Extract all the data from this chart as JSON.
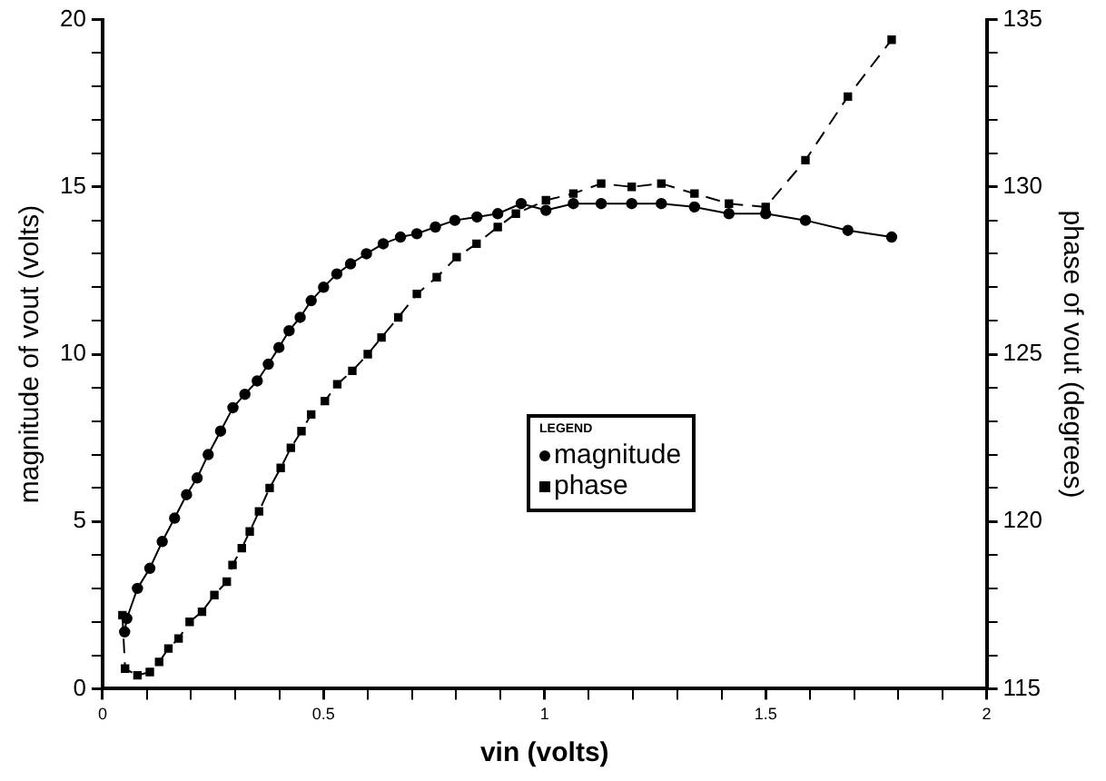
{
  "chart_data": {
    "type": "line",
    "xlabel": "vin (volts)",
    "ylabel": "magnitude of vout (volts)",
    "y2label": "phase of vout (degrees)",
    "legend_title": "LEGEND",
    "legend": "right",
    "grid": false,
    "xlim": [
      0,
      2
    ],
    "xticks": [
      0,
      {
        "value": 0.1,
        "label": null
      },
      {
        "value": 0.2,
        "label": null
      },
      {
        "value": 0.3,
        "label": null
      },
      {
        "value": 0.4,
        "label": null
      },
      0.5,
      {
        "value": 0.6,
        "label": null
      },
      {
        "value": 0.7,
        "label": null
      },
      {
        "value": 0.8,
        "label": null
      },
      {
        "value": 0.9,
        "label": null
      },
      1,
      {
        "value": 1.1,
        "label": null
      },
      {
        "value": 1.2,
        "label": null
      },
      {
        "value": 1.3,
        "label": null
      },
      {
        "value": 1.4,
        "label": null
      },
      1.5,
      {
        "value": 1.6,
        "label": null
      },
      {
        "value": 1.7,
        "label": null
      },
      {
        "value": 1.8,
        "label": null
      },
      {
        "value": 1.9,
        "label": null
      },
      2
    ],
    "ylim": [
      0,
      20
    ],
    "yticks": [
      0,
      {
        "value": 1,
        "label": null
      },
      {
        "value": 2,
        "label": null
      },
      {
        "value": 3,
        "label": null
      },
      {
        "value": 4,
        "label": null
      },
      5,
      {
        "value": 6,
        "label": null
      },
      {
        "value": 7,
        "label": null
      },
      {
        "value": 8,
        "label": null
      },
      {
        "value": 9,
        "label": null
      },
      10,
      {
        "value": 11,
        "label": null
      },
      {
        "value": 12,
        "label": null
      },
      {
        "value": 13,
        "label": null
      },
      {
        "value": 14,
        "label": null
      },
      15,
      {
        "value": 16,
        "label": null
      },
      {
        "value": 17,
        "label": null
      },
      {
        "value": 18,
        "label": null
      },
      {
        "value": 19,
        "label": null
      },
      20
    ],
    "y2lim": [
      115,
      135
    ],
    "y2ticks": [
      115,
      {
        "value": 116,
        "label": null
      },
      {
        "value": 117,
        "label": null
      },
      {
        "value": 118,
        "label": null
      },
      {
        "value": 119,
        "label": null
      },
      120,
      {
        "value": 121,
        "label": null
      },
      {
        "value": 122,
        "label": null
      },
      {
        "value": 123,
        "label": null
      },
      {
        "value": 124,
        "label": null
      },
      125,
      {
        "value": 126,
        "label": null
      },
      {
        "value": 127,
        "label": null
      },
      {
        "value": 128,
        "label": null
      },
      {
        "value": 129,
        "label": null
      },
      130,
      {
        "value": 131,
        "label": null
      },
      {
        "value": 132,
        "label": null
      },
      {
        "value": 133,
        "label": null
      },
      {
        "value": 134,
        "label": null
      },
      135
    ],
    "series": [
      {
        "name": "magnitude",
        "color": "#000000",
        "marker": "circle",
        "line_style": "solid",
        "x": [
          0.05,
          0.055,
          0.079,
          0.107,
          0.135,
          0.163,
          0.19,
          0.214,
          0.239,
          0.267,
          0.295,
          0.322,
          0.35,
          0.375,
          0.399,
          0.422,
          0.447,
          0.472,
          0.5,
          0.53,
          0.561,
          0.597,
          0.635,
          0.674,
          0.711,
          0.753,
          0.797,
          0.847,
          0.894,
          0.947,
          1.003,
          1.065,
          1.128,
          1.197,
          1.264,
          1.339,
          1.417,
          1.5,
          1.59,
          1.686,
          1.785
        ],
        "values": [
          1.7,
          2.1,
          3.0,
          3.6,
          4.4,
          5.1,
          5.8,
          6.3,
          7.0,
          7.7,
          8.4,
          8.8,
          9.2,
          9.7,
          10.2,
          10.7,
          11.1,
          11.6,
          12.0,
          12.4,
          12.7,
          13.0,
          13.3,
          13.5,
          13.6,
          13.8,
          14.0,
          14.1,
          14.2,
          14.5,
          14.3,
          14.5,
          14.5,
          14.5,
          14.5,
          14.4,
          14.2,
          14.2,
          14.0,
          13.7,
          13.5
        ]
      },
      {
        "name": "phase",
        "color": "#000000",
        "marker": "square",
        "line_style": "dashed",
        "axis": "y2",
        "x": [
          0.045,
          0.051,
          0.079,
          0.107,
          0.128,
          0.149,
          0.172,
          0.197,
          0.225,
          0.253,
          0.281,
          0.294,
          0.315,
          0.333,
          0.354,
          0.378,
          0.403,
          0.426,
          0.45,
          0.472,
          0.503,
          0.531,
          0.565,
          0.6,
          0.631,
          0.669,
          0.711,
          0.756,
          0.801,
          0.846,
          0.894,
          0.935,
          1.003,
          1.065,
          1.128,
          1.197,
          1.264,
          1.339,
          1.417,
          1.5,
          1.59,
          1.686,
          1.785
        ],
        "values": [
          117.2,
          115.6,
          115.4,
          115.5,
          115.8,
          116.2,
          116.5,
          117.0,
          117.3,
          117.8,
          118.2,
          118.7,
          119.2,
          119.7,
          120.3,
          121.0,
          121.6,
          122.2,
          122.7,
          123.2,
          123.6,
          124.1,
          124.5,
          125.0,
          125.5,
          126.1,
          126.8,
          127.3,
          127.9,
          128.3,
          128.8,
          129.2,
          129.6,
          129.8,
          130.1,
          130.0,
          130.1,
          129.8,
          129.5,
          129.4,
          130.8,
          132.7,
          134.4
        ]
      }
    ]
  }
}
